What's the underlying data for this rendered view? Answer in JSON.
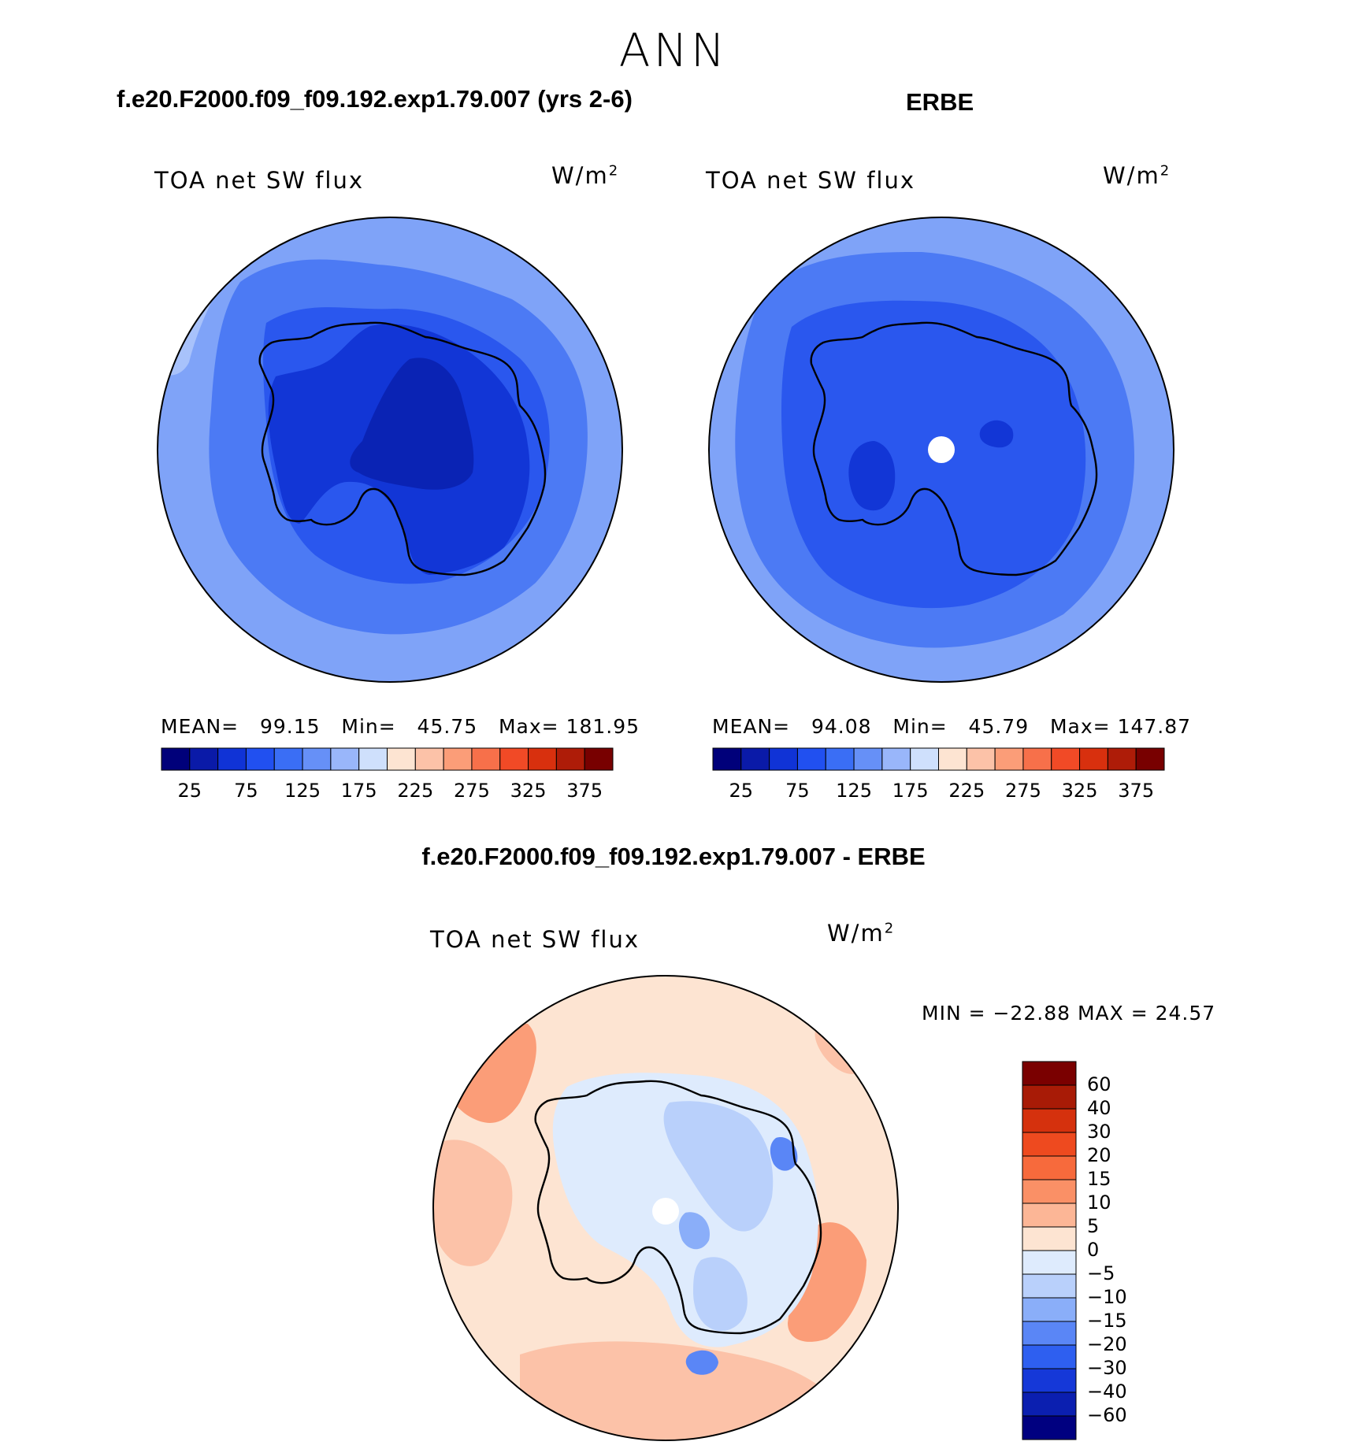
{
  "figure": {
    "title": "ANN",
    "model_title": "f.e20.F2000.f09_f09.192.exp1.79.007 (yrs 2-6)",
    "obs_title": "ERBE",
    "diff_title": "f.e20.F2000.f09_f09.192.exp1.79.007 - ERBE"
  },
  "panels": {
    "model": {
      "variable": "TOA net SW flux",
      "units_base": "W/m",
      "units_exp": "2",
      "mean_label": "MEAN=",
      "mean": "99.15",
      "min_label": "Min=",
      "min": "45.75",
      "max_label": "Max=",
      "max": "181.95"
    },
    "obs": {
      "variable": "TOA net SW flux",
      "units_base": "W/m",
      "units_exp": "2",
      "mean_label": "MEAN=",
      "mean": "94.08",
      "min_label": "Min=",
      "min": "45.79",
      "max_label": "Max=",
      "max": "147.87"
    },
    "diff": {
      "variable": "TOA net SW flux",
      "units_base": "W/m",
      "units_exp": "2",
      "minmax_text": "MIN = −22.88 MAX =   24.57"
    }
  },
  "colorbars": {
    "abs": {
      "colors": [
        "#00007a",
        "#0a1aa8",
        "#1033d6",
        "#2150f0",
        "#3a6ef5",
        "#6690f7",
        "#99b6fa",
        "#cfe0fc",
        "#fde4d2",
        "#fcc2a8",
        "#fb9d78",
        "#f7704a",
        "#f14a26",
        "#d8300e",
        "#ae1c08",
        "#780000"
      ],
      "ticks": [
        "25",
        "75",
        "125",
        "175",
        "225",
        "275",
        "325",
        "375"
      ]
    },
    "diff": {
      "colors": [
        "#000080",
        "#0b1fb0",
        "#1538d8",
        "#2e5ff0",
        "#5a86f6",
        "#8aaef9",
        "#b9d0fb",
        "#deebfd",
        "#fde4d2",
        "#fcb696",
        "#fa9066",
        "#f76a3c",
        "#ee4a1f",
        "#d5310d",
        "#a81b06",
        "#7a0000"
      ],
      "tick_labels": [
        "60",
        "40",
        "30",
        "20",
        "15",
        "10",
        "5",
        "0",
        "−5",
        "−10",
        "−15",
        "−20",
        "−30",
        "−40",
        "−60"
      ]
    }
  },
  "map_fields": {
    "model": {
      "outer_color": "#7fa3f8",
      "levels": [
        {
          "value": 125,
          "color": "#7fa3f8"
        },
        {
          "value": 100,
          "color": "#4c7af4"
        },
        {
          "value": 75,
          "color": "#2a57ee"
        },
        {
          "value": 50,
          "color": "#1236d6"
        },
        {
          "value": 25,
          "color": "#0a23b4"
        }
      ]
    },
    "obs": {
      "outer_color": "#7fa3f8",
      "levels": [
        {
          "value": 125,
          "color": "#7fa3f8"
        },
        {
          "value": 100,
          "color": "#4c7af4"
        },
        {
          "value": 75,
          "color": "#2a57ee"
        },
        {
          "value": 50,
          "color": "#1236d6"
        }
      ]
    },
    "diff": {
      "levels": [
        {
          "value": 0,
          "color": "#fde4d2"
        },
        {
          "value": 5,
          "color": "#fcc2a8"
        },
        {
          "value": 10,
          "color": "#fb9d78"
        },
        {
          "value": -5,
          "color": "#deebfd"
        },
        {
          "value": -10,
          "color": "#b9d0fb"
        },
        {
          "value": -15,
          "color": "#8aaef9"
        },
        {
          "value": -20,
          "color": "#5a86f6"
        }
      ]
    }
  }
}
